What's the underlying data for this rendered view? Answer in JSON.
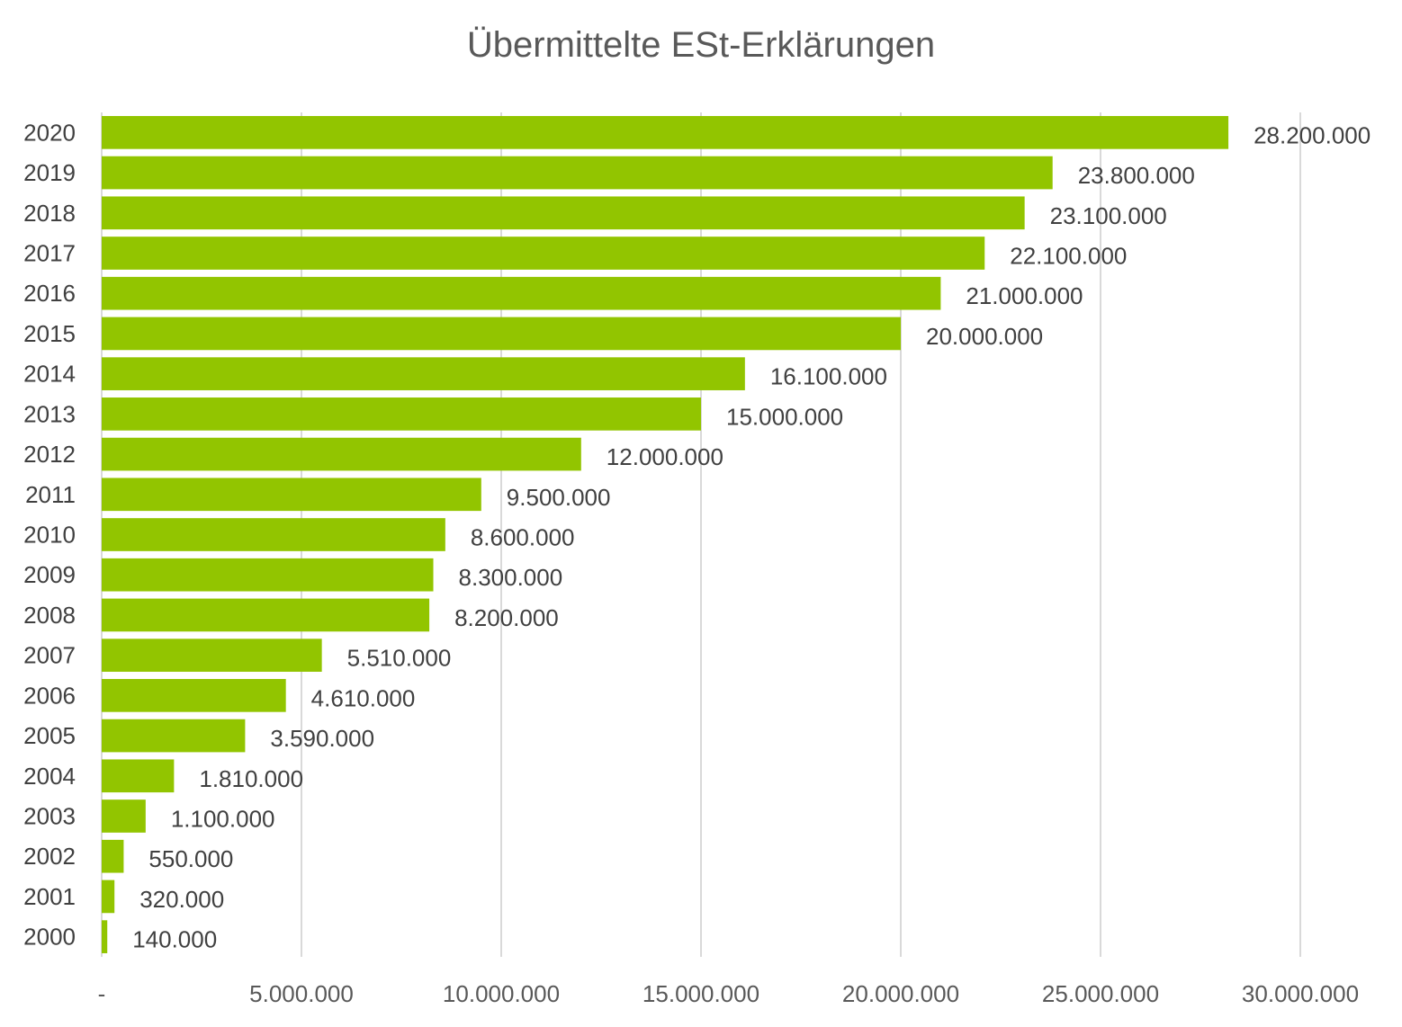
{
  "chart_data": {
    "type": "bar",
    "orientation": "horizontal",
    "title": "Übermittelte ESt-Erklärungen",
    "categories": [
      "2000",
      "2001",
      "2002",
      "2003",
      "2004",
      "2005",
      "2006",
      "2007",
      "2008",
      "2009",
      "2010",
      "2011",
      "2012",
      "2013",
      "2014",
      "2015",
      "2016",
      "2017",
      "2018",
      "2019",
      "2020"
    ],
    "values": [
      140000,
      320000,
      550000,
      1100000,
      1810000,
      3590000,
      4610000,
      5510000,
      8200000,
      8300000,
      8600000,
      9500000,
      12000000,
      15000000,
      16100000,
      20000000,
      21000000,
      22100000,
      23100000,
      23800000,
      28200000
    ],
    "data_labels": [
      "140.000",
      "320.000",
      "550.000",
      "1.100.000",
      "1.810.000",
      "3.590.000",
      "4.610.000",
      "5.510.000",
      "8.200.000",
      "8.300.000",
      "8.600.000",
      "9.500.000",
      "12.000.000",
      "15.000.000",
      "16.100.000",
      "20.000.000",
      "21.000.000",
      "22.100.000",
      "23.100.000",
      "23.800.000",
      "28.200.000"
    ],
    "xlim": [
      0,
      30000000
    ],
    "x_ticks": [
      0,
      5000000,
      10000000,
      15000000,
      20000000,
      25000000,
      30000000
    ],
    "x_tick_labels": [
      "-",
      "5.000.000",
      "10.000.000",
      "15.000.000",
      "20.000.000",
      "25.000.000",
      "30.000.000"
    ],
    "grid": "vertical",
    "legend": "none",
    "bar_color": "#92C500",
    "grid_color": "#D9D9D9"
  }
}
